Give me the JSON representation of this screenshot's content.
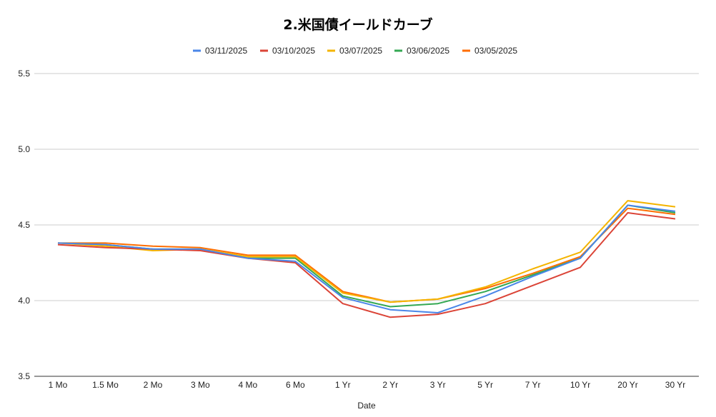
{
  "chart_data": {
    "type": "line",
    "title": "2.米国債イールドカーブ",
    "xlabel": "Date",
    "ylabel": "",
    "ylim": [
      3.5,
      5.5
    ],
    "yticks": [
      "3.5",
      "4.0",
      "4.5",
      "5.0",
      "5.5"
    ],
    "grid": true,
    "legend_position": "top",
    "categories": [
      "1 Mo",
      "1.5 Mo",
      "2 Mo",
      "3 Mo",
      "4 Mo",
      "6 Mo",
      "1 Yr",
      "2 Yr",
      "3 Yr",
      "5 Yr",
      "7 Yr",
      "10 Yr",
      "20 Yr",
      "30 Yr"
    ],
    "series": [
      {
        "name": "03/11/2025",
        "color": "#4a86e8",
        "values": [
          4.38,
          4.37,
          4.34,
          4.34,
          4.28,
          4.26,
          4.02,
          3.94,
          3.92,
          4.03,
          4.16,
          4.28,
          4.63,
          4.59
        ]
      },
      {
        "name": "03/10/2025",
        "color": "#db4437",
        "values": [
          4.37,
          4.35,
          4.34,
          4.33,
          4.28,
          4.25,
          3.98,
          3.89,
          3.91,
          3.98,
          4.1,
          4.22,
          4.58,
          4.54
        ]
      },
      {
        "name": "03/07/2025",
        "color": "#f4b400",
        "values": [
          4.38,
          4.36,
          4.33,
          4.34,
          4.29,
          4.29,
          4.05,
          3.99,
          4.01,
          4.09,
          4.21,
          4.32,
          4.66,
          4.62
        ]
      },
      {
        "name": "03/06/2025",
        "color": "#34a853",
        "values": [
          4.38,
          4.37,
          4.34,
          4.34,
          4.28,
          4.28,
          4.03,
          3.96,
          3.98,
          4.06,
          4.17,
          4.28,
          4.63,
          4.58
        ]
      },
      {
        "name": "03/05/2025",
        "color": "#ff6d01",
        "values": [
          4.38,
          4.38,
          4.36,
          4.35,
          4.3,
          4.3,
          4.06,
          3.99,
          4.01,
          4.08,
          4.18,
          4.29,
          4.61,
          4.57
        ]
      }
    ]
  }
}
